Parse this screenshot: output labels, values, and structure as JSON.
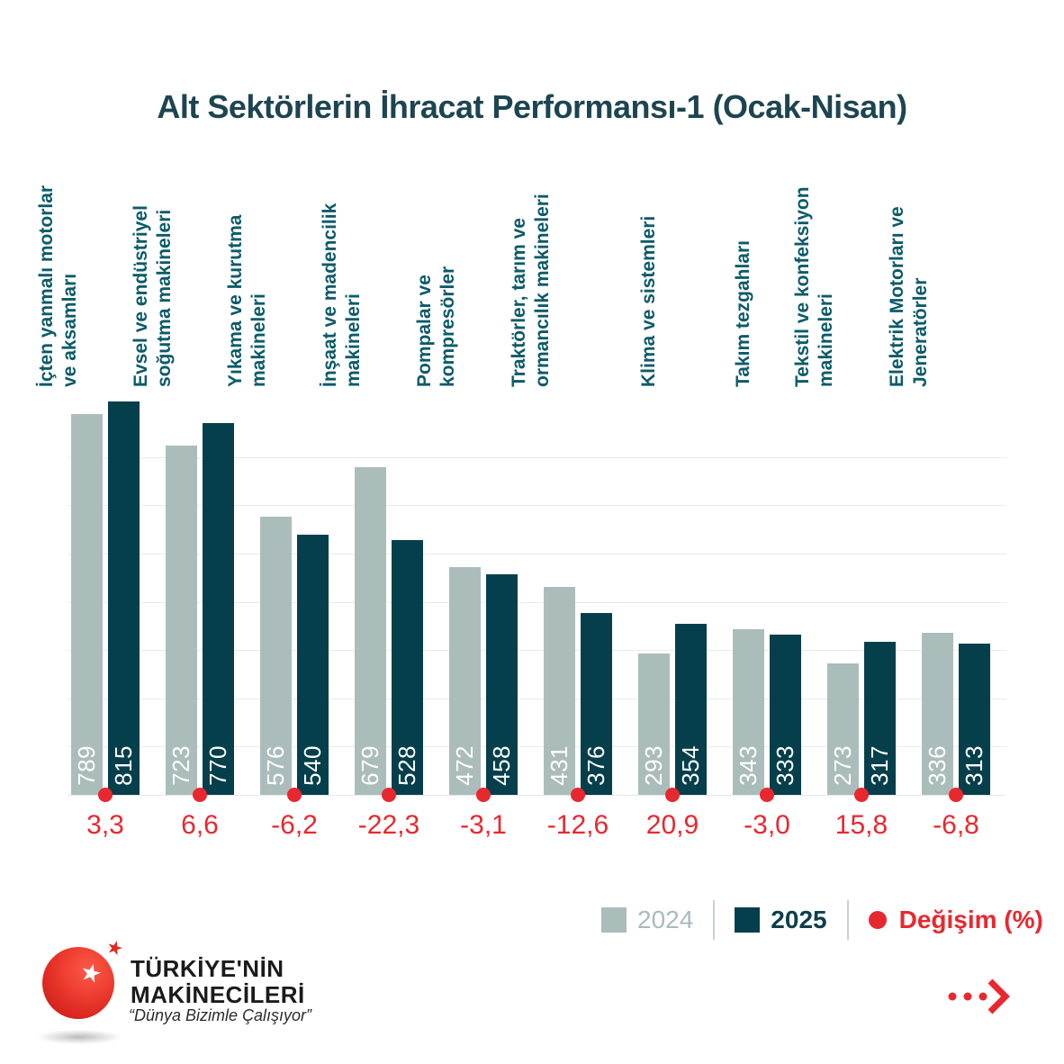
{
  "title": "Alt Sektörlerin İhracat Performansı-1 (Ocak-Nisan)",
  "chart_data": {
    "type": "bar",
    "title": "Alt Sektörlerin İhracat Performansı-1 (Ocak-Nisan)",
    "categories": [
      {
        "lines": [
          "İçten yanmalı motorlar",
          "ve aksamları"
        ]
      },
      {
        "lines": [
          "Evsel ve endüstriyel",
          "soğutma makineleri"
        ]
      },
      {
        "lines": [
          "Yıkama ve kurutma",
          "makineleri"
        ]
      },
      {
        "lines": [
          "İnşaat ve madencilik",
          "makineleri"
        ]
      },
      {
        "lines": [
          "Pompalar ve",
          "kompresörler"
        ]
      },
      {
        "lines": [
          "Traktörler, tarım ve",
          "ormancılık makineleri"
        ]
      },
      {
        "lines": [
          "Klima ve sistemleri"
        ]
      },
      {
        "lines": [
          "Takım tezgahları"
        ]
      },
      {
        "lines": [
          "Tekstil ve konfeksiyon",
          "makineleri"
        ]
      },
      {
        "lines": [
          "Elektrik Motorları ve",
          "Jeneratörler"
        ]
      }
    ],
    "series": [
      {
        "name": "2024",
        "color": "#ABBDBB",
        "values": [
          789,
          723,
          576,
          679,
          472,
          431,
          293,
          343,
          273,
          336
        ]
      },
      {
        "name": "2025",
        "color": "#053F4C",
        "values": [
          815,
          770,
          540,
          528,
          458,
          376,
          354,
          333,
          317,
          313
        ]
      }
    ],
    "change_pct": {
      "name": "Değişim (%)",
      "color": "#E8282F",
      "values": [
        "3,3",
        "6,6",
        "-6,2",
        "-22,3",
        "-3,1",
        "-12,6",
        "20,9",
        "-3,0",
        "15,8",
        "-6,8"
      ]
    },
    "ylim": [
      0,
      860
    ],
    "gridline_step": 100,
    "grid": true,
    "legend_position": "bottom-right",
    "bar_value_labels": "inside-bottom-rotated"
  },
  "legend": {
    "items": [
      {
        "label": "2024",
        "swatch": "square",
        "color": "#ABBDBB",
        "text_color": "#A9BBB9",
        "bold": false
      },
      {
        "label": "2025",
        "swatch": "square",
        "color": "#053F4C",
        "text_color": "#0C3F4C",
        "bold": true
      },
      {
        "label": "Değişim (%)",
        "swatch": "dot",
        "color": "#E8282F",
        "text_color": "#E8282F",
        "bold": true
      }
    ]
  },
  "footer": {
    "brand_line1": "TÜRKİYE'NİN",
    "brand_line2": "MAKİNECİLERİ",
    "slogan": "“Dünya Bizimle Çalışıyor”",
    "star_glyph": "★"
  },
  "colors": {
    "title": "#1D4551",
    "category_label": "#0C5B6A",
    "gridline": "#E9ECEC",
    "bar_2024": "#ABBDBB",
    "bar_2025": "#053F4C",
    "accent_red": "#E8282F"
  }
}
